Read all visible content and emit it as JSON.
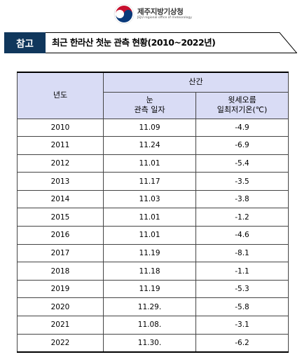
{
  "header": {
    "org_name_ko": "제주지방기상청",
    "org_name_en": "JEJU regional office of meteorology"
  },
  "banner": {
    "tag": "참고",
    "title": "최근  한라산  첫눈  관측  현황(2010~2022년)"
  },
  "table": {
    "col_year": "년도",
    "group_header": "산간",
    "col_date_line1": "눈",
    "col_date_line2": "관측  일자",
    "col_temp_line1": "윗세오름",
    "col_temp_line2": "일최저기온(℃)",
    "rows": [
      {
        "year": "2010",
        "date": "11.09",
        "temp": "-4.9"
      },
      {
        "year": "2011",
        "date": "11.24",
        "temp": "-6.9"
      },
      {
        "year": "2012",
        "date": "11.01",
        "temp": "-5.4"
      },
      {
        "year": "2013",
        "date": "11.17",
        "temp": "-3.5"
      },
      {
        "year": "2014",
        "date": "11.03",
        "temp": "-3.8"
      },
      {
        "year": "2015",
        "date": "11.01",
        "temp": "-1.2"
      },
      {
        "year": "2016",
        "date": "11.01",
        "temp": "-4.6"
      },
      {
        "year": "2017",
        "date": "11.19",
        "temp": "-8.1"
      },
      {
        "year": "2018",
        "date": "11.18",
        "temp": "-1.1"
      },
      {
        "year": "2019",
        "date": "11.19",
        "temp": "-5.3"
      },
      {
        "year": "2020",
        "date": "11.29.",
        "temp": "-5.8"
      },
      {
        "year": "2021",
        "date": "11.08.",
        "temp": "-3.1"
      },
      {
        "year": "2022",
        "date": "11.30.",
        "temp": "-6.2"
      }
    ]
  }
}
